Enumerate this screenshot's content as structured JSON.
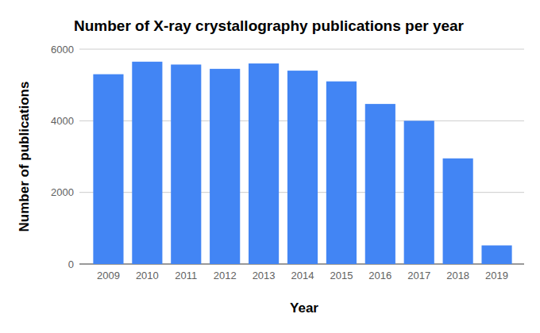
{
  "chart_data": {
    "type": "bar",
    "title": "Number of X-ray crystallography publications per year",
    "x_label": "Year",
    "y_label": "Number of publications",
    "categories": [
      "2009",
      "2010",
      "2011",
      "2012",
      "2013",
      "2014",
      "2015",
      "2016",
      "2017",
      "2018",
      "2019"
    ],
    "values": [
      5300,
      5650,
      5570,
      5450,
      5600,
      5400,
      5100,
      4470,
      4000,
      2950,
      520
    ],
    "color": "#4285f4",
    "ylim": [
      0,
      6000
    ],
    "yticks": [
      0,
      2000,
      4000,
      6000
    ],
    "grid": true
  }
}
